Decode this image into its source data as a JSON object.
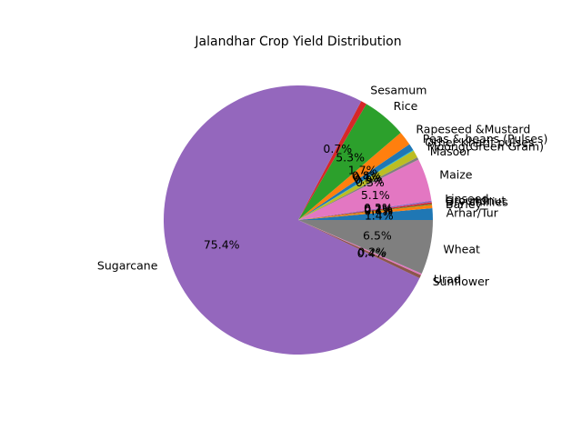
{
  "chart_data": {
    "type": "pie",
    "title": "Jalandhar Crop Yield Distribution",
    "slices": [
      {
        "label": "Arhar/Tur",
        "percent": 1.4,
        "pct_label": "1.4%",
        "color": "#1f77b4"
      },
      {
        "label": "Barley",
        "percent": 0.4,
        "pct_label": "0.4%",
        "color": "#ff7f0e"
      },
      {
        "label": "Dry chillies",
        "percent": 0.1,
        "pct_label": "0.1%",
        "color": "#2ca02c"
      },
      {
        "label": "Groundnut",
        "percent": 0.2,
        "pct_label": "0.2%",
        "color": "#d62728"
      },
      {
        "label": "Linseed",
        "percent": 0.2,
        "pct_label": "0.2%",
        "color": "#9467bd"
      },
      {
        "label": "Maize",
        "percent": 5.1,
        "pct_label": "5.1%",
        "color": "#e377c2"
      },
      {
        "label": "Masoor",
        "percent": 0.3,
        "pct_label": "0.3%",
        "color": "#7f7f7f"
      },
      {
        "label": "Moong(Green Gram)",
        "percent": 0.9,
        "pct_label": "0.9%",
        "color": "#bcbd22"
      },
      {
        "label": "Other Kharif pulses",
        "percent": 0.1,
        "pct_label": "0.1%",
        "color": "#17becf"
      },
      {
        "label": "Peas & beans (Pulses)",
        "percent": 0.8,
        "pct_label": "0.8%",
        "color": "#1f77b4"
      },
      {
        "label": "Rapeseed &Mustard",
        "percent": 1.7,
        "pct_label": "1.7%",
        "color": "#ff7f0e"
      },
      {
        "label": "Rice",
        "percent": 5.3,
        "pct_label": "5.3%",
        "color": "#2ca02c"
      },
      {
        "label": "Sesamum",
        "percent": 0.7,
        "pct_label": "0.7%",
        "color": "#d62728"
      },
      {
        "label": "Sugarcane",
        "percent": 75.4,
        "pct_label": "75.4%",
        "color": "#9467bd"
      },
      {
        "label": "Sunflower",
        "percent": 0.4,
        "pct_label": "0.4%",
        "color": "#8c564b"
      },
      {
        "label": "Urad",
        "percent": 0.2,
        "pct_label": "0.2%",
        "color": "#e377c2"
      },
      {
        "label": "Wheat",
        "percent": 6.5,
        "pct_label": "6.5%",
        "color": "#7f7f7f"
      }
    ],
    "start_angle_deg": 0,
    "direction": "counterclockwise",
    "legend": "none"
  }
}
